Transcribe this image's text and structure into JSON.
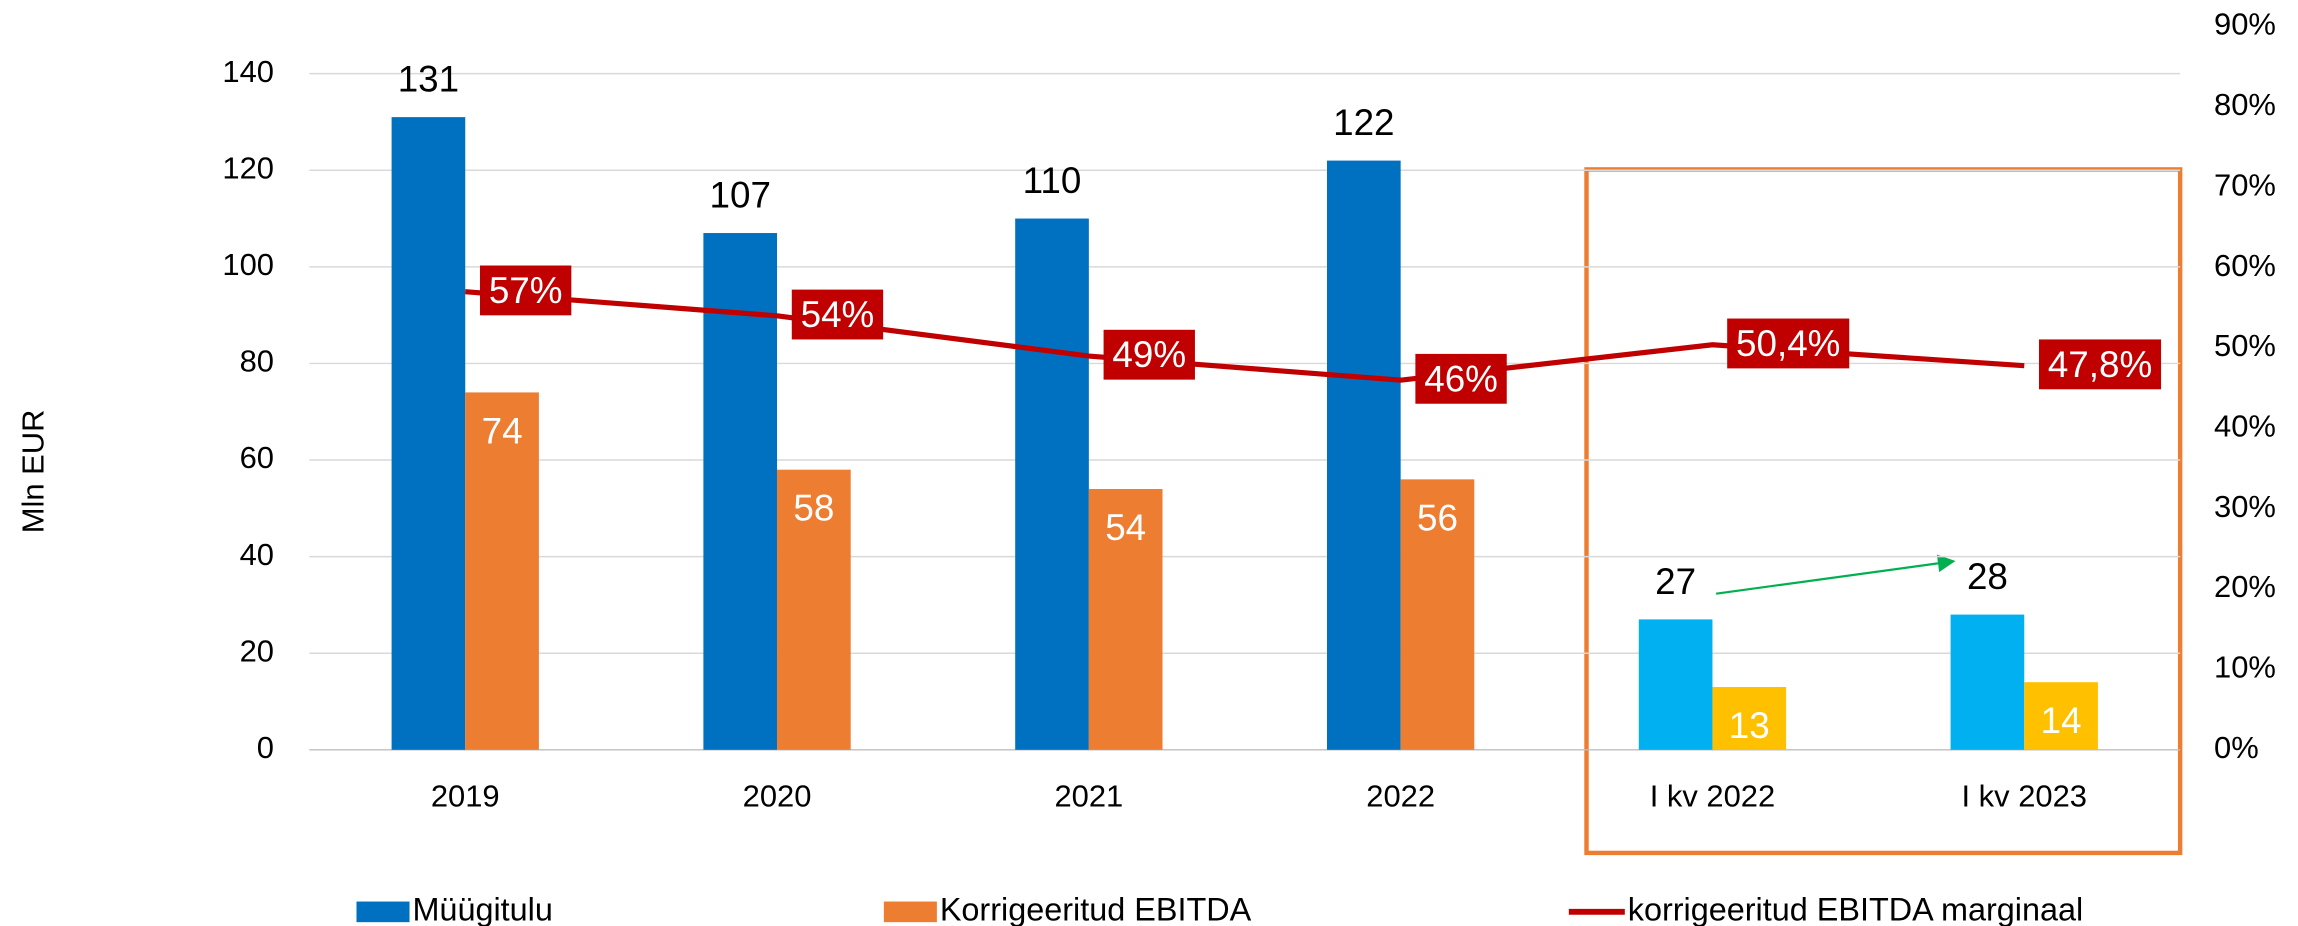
{
  "chart_data": {
    "type": "bar",
    "y_label": "Mln EUR",
    "categories": [
      "2019",
      "2020",
      "2021",
      "2022",
      "I kv 2022",
      "I kv 2023"
    ],
    "series": [
      {
        "name": "Müügitulu",
        "color": "#0070c0",
        "colors": [
          "#0070c0",
          "#0070c0",
          "#0070c0",
          "#0070c0",
          "#00b0f0",
          "#00b0f0"
        ],
        "values": [
          131,
          107,
          110,
          122,
          27,
          28
        ]
      },
      {
        "name": "Korrigeeritud EBITDA",
        "color": "#ed7d31",
        "colors": [
          "#ed7d31",
          "#ed7d31",
          "#ed7d31",
          "#ed7d31",
          "#ffc000",
          "#ffc000"
        ],
        "values": [
          74,
          58,
          54,
          56,
          13,
          14
        ]
      },
      {
        "name": "korrigeeritud EBITDA marginaal",
        "type": "line",
        "axis": "y2",
        "color": "#c00000",
        "values": [
          57,
          54,
          49,
          46,
          50.4,
          47.8
        ],
        "value_labels": [
          "57%",
          "54%",
          "49%",
          "46%",
          "50,4%",
          "47,8%"
        ]
      }
    ],
    "ylim": [
      0,
      140
    ],
    "yticks": [
      0,
      20,
      40,
      60,
      80,
      100,
      120,
      140
    ],
    "y2lim": [
      0,
      90
    ],
    "y2ticks": [
      {
        "value": 0,
        "label": "0%"
      },
      {
        "value": 10,
        "label": "10%"
      },
      {
        "value": 20,
        "label": "20%"
      },
      {
        "value": 30,
        "label": "30%"
      },
      {
        "value": 40,
        "label": "40%"
      },
      {
        "value": 50,
        "label": "50%"
      },
      {
        "value": 60,
        "label": "60%"
      },
      {
        "value": 70,
        "label": "70%"
      },
      {
        "value": 80,
        "label": "80%"
      },
      {
        "value": 90,
        "label": "90%"
      }
    ],
    "grid": true,
    "legend": "bottom"
  }
}
